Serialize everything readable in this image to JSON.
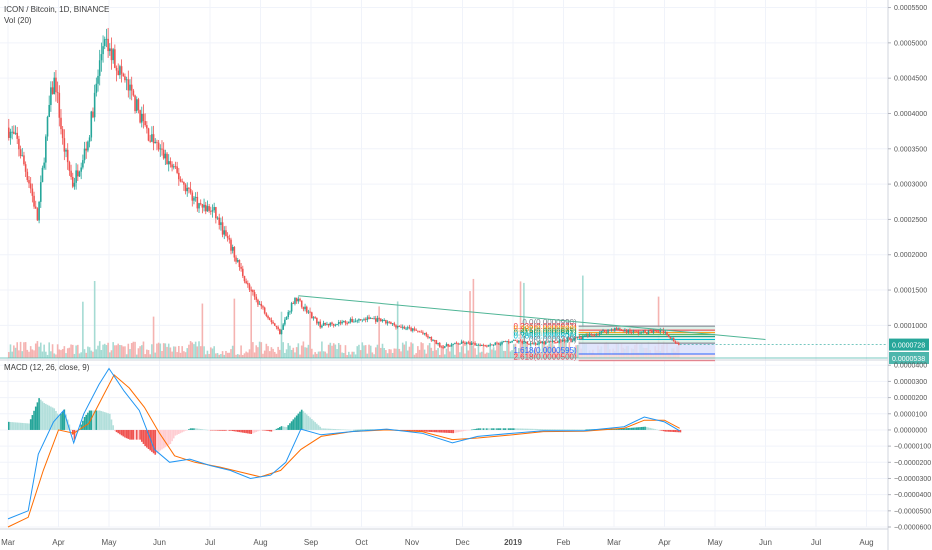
{
  "chart_data": [
    {
      "type": "candlestick",
      "title": "ICON / Bitcoin, 1D, BINANCE",
      "volume_label": "Vol (20)",
      "x_tick_labels": [
        "Mar",
        "Apr",
        "May",
        "Jun",
        "Jul",
        "Aug",
        "Sep",
        "Oct",
        "Nov",
        "Dec",
        "2019",
        "Feb",
        "Mar",
        "Apr",
        "May",
        "Jun",
        "Jul",
        "Aug"
      ],
      "y_tick_labels": [
        "0.0005500",
        "0.0005000",
        "0.0004500",
        "0.0004000",
        "0.0003500",
        "0.0003000",
        "0.0002500",
        "0.0002000",
        "0.0001500",
        "0.0001000"
      ],
      "y_ticks": [
        0.00055,
        0.0005,
        0.00045,
        0.0004,
        0.00035,
        0.0003,
        0.00025,
        0.0002,
        0.00015,
        0.0001
      ],
      "ylim": [
        5.38e-05,
        0.000555
      ],
      "price_path": [
        {
          "x": 0,
          "y": 0.00038
        },
        {
          "x": 0.2,
          "y": 0.00036
        },
        {
          "x": 0.45,
          "y": 0.0003
        },
        {
          "x": 0.6,
          "y": 0.00025
        },
        {
          "x": 0.85,
          "y": 0.00042
        },
        {
          "x": 0.95,
          "y": 0.00045
        },
        {
          "x": 1.1,
          "y": 0.00036
        },
        {
          "x": 1.3,
          "y": 0.0003
        },
        {
          "x": 1.6,
          "y": 0.00036
        },
        {
          "x": 1.9,
          "y": 0.0005
        },
        {
          "x": 2.1,
          "y": 0.00048
        },
        {
          "x": 2.5,
          "y": 0.00042
        },
        {
          "x": 2.8,
          "y": 0.00037
        },
        {
          "x": 3.1,
          "y": 0.00034
        },
        {
          "x": 3.5,
          "y": 0.0003
        },
        {
          "x": 3.8,
          "y": 0.00027
        },
        {
          "x": 4.1,
          "y": 0.00026
        },
        {
          "x": 4.5,
          "y": 0.0002
        },
        {
          "x": 4.8,
          "y": 0.00015
        },
        {
          "x": 5.1,
          "y": 0.00012
        },
        {
          "x": 5.4,
          "y": 9e-05
        },
        {
          "x": 5.7,
          "y": 0.00014
        },
        {
          "x": 6.2,
          "y": 0.0001
        },
        {
          "x": 6.7,
          "y": 0.000105
        },
        {
          "x": 7.2,
          "y": 0.00011
        },
        {
          "x": 7.7,
          "y": 0.0001
        },
        {
          "x": 8.2,
          "y": 9e-05
        },
        {
          "x": 8.6,
          "y": 7e-05
        },
        {
          "x": 9.0,
          "y": 7.5e-05
        },
        {
          "x": 9.5,
          "y": 7.2e-05
        },
        {
          "x": 10.0,
          "y": 7.8e-05
        },
        {
          "x": 10.5,
          "y": 7.4e-05
        },
        {
          "x": 11.0,
          "y": 7.8e-05
        },
        {
          "x": 11.5,
          "y": 8.5e-05
        },
        {
          "x": 12.0,
          "y": 9.5e-05
        },
        {
          "x": 12.5,
          "y": 9e-05
        },
        {
          "x": 13.0,
          "y": 9.2e-05
        },
        {
          "x": 13.3,
          "y": 7.28e-05
        }
      ],
      "trendline": {
        "from": {
          "x": 5.75,
          "y": 0.000142
        },
        "to": {
          "x": 15.0,
          "y": 8e-05
        }
      },
      "hline": 5.38e-05,
      "fib_levels": [
        {
          "label": "0.0(0.0000990)",
          "value": 9.9e-05,
          "color": "#787b86"
        },
        {
          "label": "0.236(0.0000933)",
          "value": 9.33e-05,
          "color": "#f23645"
        },
        {
          "label": "0.382(0.0000898)",
          "value": 8.98e-05,
          "color": "#ff9800"
        },
        {
          "label": "0.5(0.0000869)",
          "value": 8.69e-05,
          "color": "#4caf50"
        },
        {
          "label": "0.618(0.0000841)",
          "value": 8.41e-05,
          "color": "#089981"
        },
        {
          "label": "0.786(0.0000800)",
          "value": 8e-05,
          "color": "#00bcd4"
        },
        {
          "label": "1.0(0.0000749)",
          "value": 7.49e-05,
          "color": "#787b86"
        },
        {
          "label": "1.618(0.0000595)",
          "value": 5.95e-05,
          "color": "#2962ff"
        },
        {
          "label": "2.618(0.0000500)",
          "value": 5e-05,
          "color": "#f23645"
        }
      ],
      "fib_range": {
        "x_start": 11.3,
        "x_end": 14.0
      },
      "last_price_badge": "0.0000728",
      "hline_badge": "0.0000538",
      "colors": {
        "up": "#26a69a",
        "down": "#ef5350",
        "trend": "#4fb596",
        "fib_fill_top": "#d8f0e6",
        "fib_fill_blue": "#dbe0fb",
        "fib_fill_red": "#fbe1e1",
        "badge_green": "#26a69a",
        "badge_teal": "#4db6ac"
      }
    },
    {
      "type": "macd",
      "title": "MACD (12, 26, close, 9)",
      "y_tick_labels": [
        "0.0000400",
        "0.0000300",
        "0.0000200",
        "0.0000100",
        "0.0000000",
        "−0.0000100",
        "−0.0000200",
        "−0.0000300",
        "−0.0000400",
        "−0.0000500",
        "−0.0000600"
      ],
      "y_ticks": [
        4e-05,
        3e-05,
        2e-05,
        1e-05,
        0,
        -1e-05,
        -2e-05,
        -3e-05,
        -4e-05,
        -5e-05,
        -6e-05
      ],
      "ylim": [
        -6e-05,
        4.2e-05
      ],
      "macd_line": [
        {
          "x": 0,
          "y": -5.5e-05
        },
        {
          "x": 0.4,
          "y": -5e-05
        },
        {
          "x": 0.6,
          "y": -1.5e-05
        },
        {
          "x": 0.9,
          "y": 5e-06
        },
        {
          "x": 1.1,
          "y": 1.2e-05
        },
        {
          "x": 1.3,
          "y": -8e-06
        },
        {
          "x": 1.5,
          "y": 1e-05
        },
        {
          "x": 1.8,
          "y": 2.8e-05
        },
        {
          "x": 2.0,
          "y": 3.8e-05
        },
        {
          "x": 2.3,
          "y": 2.4e-05
        },
        {
          "x": 2.6,
          "y": 1.2e-05
        },
        {
          "x": 2.9,
          "y": -1.2e-05
        },
        {
          "x": 3.2,
          "y": -2e-05
        },
        {
          "x": 3.6,
          "y": -1.8e-05
        },
        {
          "x": 4.0,
          "y": -2.2e-05
        },
        {
          "x": 4.4,
          "y": -2.5e-05
        },
        {
          "x": 4.8,
          "y": -3e-05
        },
        {
          "x": 5.2,
          "y": -2.8e-05
        },
        {
          "x": 5.5,
          "y": -2e-05
        },
        {
          "x": 5.8,
          "y": 5e-07
        },
        {
          "x": 6.2,
          "y": -3e-06
        },
        {
          "x": 6.8,
          "y": -1e-06
        },
        {
          "x": 7.5,
          "y": 5e-07
        },
        {
          "x": 8.2,
          "y": -2e-06
        },
        {
          "x": 8.8,
          "y": -8e-06
        },
        {
          "x": 9.3,
          "y": -4e-06
        },
        {
          "x": 10.0,
          "y": -2e-06
        },
        {
          "x": 10.6,
          "y": -5e-07
        },
        {
          "x": 11.4,
          "y": -5e-07
        },
        {
          "x": 12.2,
          "y": 2e-06
        },
        {
          "x": 12.6,
          "y": 8e-06
        },
        {
          "x": 13.0,
          "y": 5e-06
        },
        {
          "x": 13.3,
          "y": -5e-07
        }
      ],
      "signal_line": [
        {
          "x": 0,
          "y": -6e-05
        },
        {
          "x": 0.4,
          "y": -5.4e-05
        },
        {
          "x": 0.7,
          "y": -2.5e-05
        },
        {
          "x": 1.0,
          "y": 0.0
        },
        {
          "x": 1.3,
          "y": -2e-06
        },
        {
          "x": 1.6,
          "y": 4e-06
        },
        {
          "x": 1.9,
          "y": 2.2e-05
        },
        {
          "x": 2.1,
          "y": 3.4e-05
        },
        {
          "x": 2.4,
          "y": 2.6e-05
        },
        {
          "x": 2.7,
          "y": 1.4e-05
        },
        {
          "x": 3.0,
          "y": -2e-06
        },
        {
          "x": 3.3,
          "y": -1.6e-05
        },
        {
          "x": 3.7,
          "y": -2e-05
        },
        {
          "x": 4.2,
          "y": -2.3e-05
        },
        {
          "x": 4.6,
          "y": -2.6e-05
        },
        {
          "x": 5.0,
          "y": -2.9e-05
        },
        {
          "x": 5.4,
          "y": -2.5e-05
        },
        {
          "x": 5.8,
          "y": -1.2e-05
        },
        {
          "x": 6.2,
          "y": -4e-06
        },
        {
          "x": 6.8,
          "y": -1e-06
        },
        {
          "x": 7.5,
          "y": 0.0
        },
        {
          "x": 8.2,
          "y": -1e-06
        },
        {
          "x": 8.8,
          "y": -6e-06
        },
        {
          "x": 9.3,
          "y": -5e-06
        },
        {
          "x": 10.0,
          "y": -3e-06
        },
        {
          "x": 10.6,
          "y": -1e-06
        },
        {
          "x": 11.4,
          "y": -8e-07
        },
        {
          "x": 12.2,
          "y": 1e-06
        },
        {
          "x": 12.6,
          "y": 6e-06
        },
        {
          "x": 13.0,
          "y": 6e-06
        },
        {
          "x": 13.3,
          "y": 1e-06
        }
      ],
      "colors": {
        "macd": "#2196f3",
        "signal": "#ff6d00",
        "hist_up": "#26a69a",
        "hist_up_light": "#b2dfdb",
        "hist_down": "#ef5350",
        "hist_down_light": "#ffcdd2"
      }
    }
  ]
}
